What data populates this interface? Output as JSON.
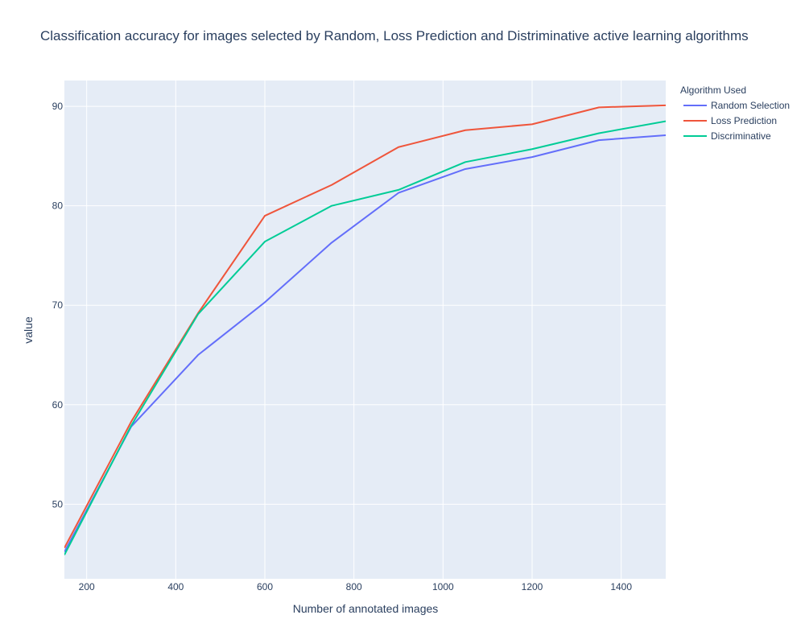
{
  "chart_data": {
    "type": "line",
    "title": "Classification accuracy for images selected by Random, Loss Prediction and Distriminative active learning algorithms",
    "xlabel": "Number of annotated images",
    "ylabel": "value",
    "xlim": [
      150,
      1500
    ],
    "ylim": [
      42.5,
      92.6
    ],
    "x_ticks": [
      200,
      400,
      600,
      800,
      1000,
      1200,
      1400
    ],
    "y_ticks": [
      50,
      60,
      70,
      80,
      90
    ],
    "grid": true,
    "legend": {
      "title": "Algorithm Used",
      "position": "top-right-outside"
    },
    "x": [
      150,
      300,
      450,
      600,
      750,
      900,
      1050,
      1200,
      1350,
      1500
    ],
    "series": [
      {
        "name": "Random Selection",
        "color": "#636efa",
        "values": [
          45.2,
          57.8,
          65.0,
          70.3,
          76.3,
          81.3,
          83.7,
          84.9,
          86.6,
          87.1
        ]
      },
      {
        "name": "Loss Prediction",
        "color": "#ef553b",
        "values": [
          45.6,
          58.3,
          69.2,
          79.0,
          82.1,
          85.9,
          87.6,
          88.2,
          89.9,
          90.1
        ]
      },
      {
        "name": "Discriminative",
        "color": "#00cc96",
        "values": [
          44.9,
          57.9,
          69.1,
          76.4,
          80.0,
          81.6,
          84.4,
          85.7,
          87.3,
          88.5
        ]
      }
    ]
  }
}
